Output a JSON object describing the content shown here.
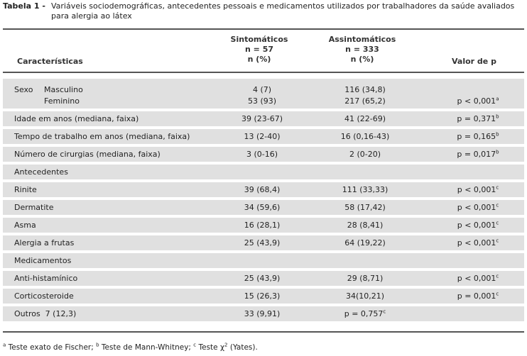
{
  "caption": {
    "label": "Tabela 1 -",
    "text": "Variáveis sociodemográficas, antecedentes pessoais e medicamentos utilizados por trabalhadores da saúde avaliados para alergia ao látex"
  },
  "header": {
    "characteristics": "Características",
    "symptomatic": [
      "Sintomáticos",
      "n = 57",
      "n (%)"
    ],
    "asymptomatic": [
      "Assintomáticos",
      "n = 333",
      "n (%)"
    ],
    "pvalue": "Valor de p"
  },
  "rows": [
    {
      "label": "Sexo",
      "sub": "Masculino",
      "sym": "4 (7)",
      "asym": "116 (34,8)",
      "p": "",
      "sup": ""
    },
    {
      "label": "",
      "sub": "Feminino",
      "sym": "53 (93)",
      "asym": "217 (65,2)",
      "p": "p < 0,001",
      "sup": "a"
    },
    {
      "label": "Idade em anos (mediana, faixa)",
      "sym": "39 (23-67)",
      "asym": "41 (22-69)",
      "p": "p = 0,371",
      "sup": "b"
    },
    {
      "label": "Tempo de trabalho em anos (mediana, faixa)",
      "sym": "13 (2-40)",
      "asym": "16 (0,16-43)",
      "p": "p = 0,165",
      "sup": "b"
    },
    {
      "label": "Número de cirurgias (mediana, faixa)",
      "sym": "3 (0-16)",
      "asym": "2 (0-20)",
      "p": "p = 0,017",
      "sup": "b"
    },
    {
      "label": "Antecedentes",
      "sym": "",
      "asym": "",
      "p": "",
      "sup": ""
    },
    {
      "label": "Rinite",
      "sym": "39 (68,4)",
      "asym": "111 (33,33)",
      "p": "p < 0,001",
      "sup": "c"
    },
    {
      "label": "Dermatite",
      "sym": "34 (59,6)",
      "asym": "58 (17,42)",
      "p": "p < 0,001",
      "sup": "c"
    },
    {
      "label": "Asma",
      "sym": "16 (28,1)",
      "asym": "28 (8,41)",
      "p": "p < 0,001",
      "sup": "c"
    },
    {
      "label": "Alergia a frutas",
      "sym": "25 (43,9)",
      "asym": "64 (19,22)",
      "p": "p < 0,001",
      "sup": "c"
    },
    {
      "label": "Medicamentos",
      "sym": "",
      "asym": "",
      "p": "",
      "sup": ""
    },
    {
      "label": "Anti-histamínico",
      "sym": "25 (43,9)",
      "asym": "29 (8,71)",
      "p": "p < 0,001",
      "sup": "c"
    },
    {
      "label": "Corticosteroide",
      "sym": "15 (26,3)",
      "asym": "34(10,21)",
      "p": "p = 0,001",
      "sup": "c"
    },
    {
      "label": "Outros  7 (12,3)",
      "sym": "33 (9,91)",
      "asym": "p = 0,757",
      "asym_sup": "c",
      "p": "",
      "sup": ""
    }
  ],
  "footnote": {
    "a_sup": "a",
    "a_text": " Teste exato de Fischer; ",
    "b_sup": "b",
    "b_text": " Teste de Mann-Whitney; ",
    "c_sup": "c",
    "c_text": " Teste χ",
    "c_exp": "2",
    "c_tail": " (Yates)."
  }
}
